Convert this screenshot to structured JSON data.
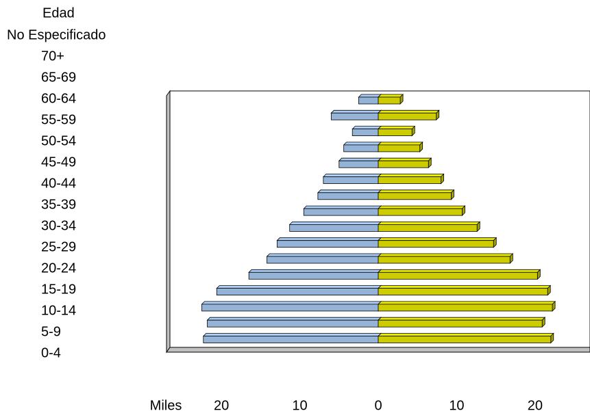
{
  "chart_data": {
    "type": "pyramid",
    "y_label": "Edad",
    "x_label": "Miles",
    "categories": [
      "No Especificado",
      "70+",
      "65-69",
      "60-64",
      "55-59",
      "50-54",
      "45-49",
      "40-44",
      "35-39",
      "30-34",
      "25-29",
      "20-24",
      "15-19",
      "10-14",
      "5-9",
      "0-4"
    ],
    "series": [
      {
        "color": "#95b3d7",
        "side": "left",
        "values": [
          2.5,
          6.0,
          3.3,
          4.4,
          5.0,
          7.0,
          7.7,
          9.5,
          11.3,
          12.9,
          14.2,
          16.5,
          20.6,
          22.5,
          21.8,
          22.3
        ]
      },
      {
        "color": "#cccc00",
        "side": "right",
        "values": [
          2.8,
          7.4,
          4.3,
          5.3,
          6.4,
          8.0,
          9.3,
          10.7,
          12.6,
          14.7,
          16.8,
          20.3,
          21.6,
          22.2,
          20.9,
          22.0
        ]
      }
    ],
    "xlim": [
      -27,
      27
    ],
    "xticks": [
      {
        "value": -20,
        "label": "20"
      },
      {
        "value": -10,
        "label": "10"
      },
      0,
      10,
      20
    ]
  }
}
